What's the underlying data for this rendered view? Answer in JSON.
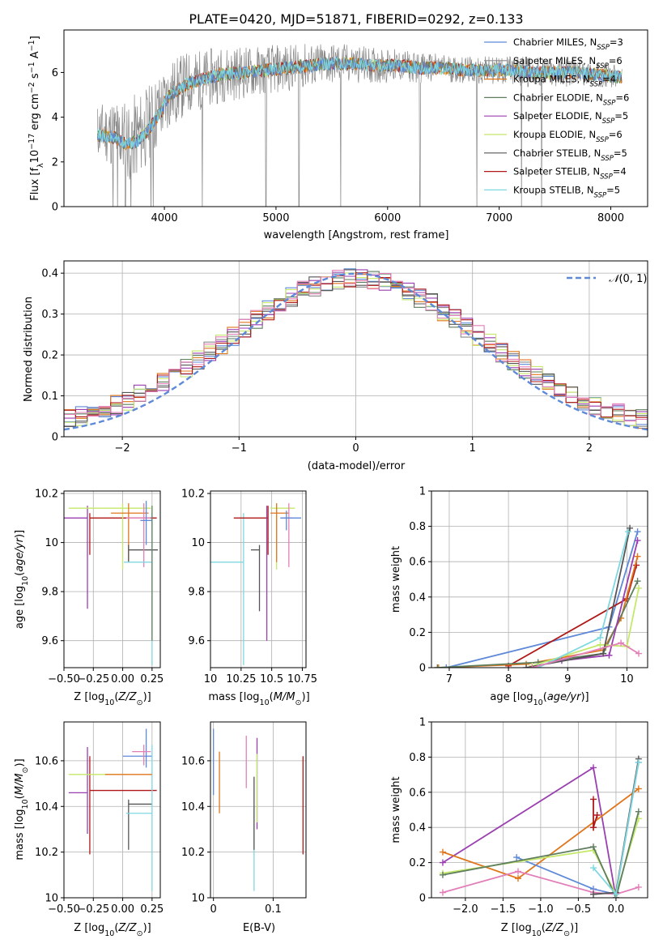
{
  "figure": {
    "title": "PLATE=0420, MJD=51871, FIBERID=0292, z=0.133",
    "colors": {
      "Chabrier MILES": "#5e89d8",
      "Salpeter MILES": "#8a8a8a",
      "Kroupa MILES": "#e0761c",
      "Chabrier ELODIE": "#5e7e5e",
      "Salpeter ELODIE": "#9a3fb0",
      "Kroupa ELODIE": "#c5e86a",
      "Chabrier STELIB": "#555555",
      "Salpeter STELIB": "#b01818",
      "Kroupa STELIB": "#7fd7e0",
      "pink": "#e37fb8",
      "data": "#888888"
    }
  },
  "chart_data": [
    {
      "id": "spectrum",
      "type": "line",
      "xlabel": "wavelength [Angstrom, rest frame]",
      "ylabel": "Flux [f_λ 10^-17 erg cm^-2 s^-1 A^-1]",
      "xlim": [
        3100,
        8330
      ],
      "ylim": [
        0,
        7.9
      ],
      "xticks": [
        4000,
        5000,
        6000,
        7000,
        8000
      ],
      "yticks": [
        0,
        2,
        4,
        6
      ],
      "grid": false,
      "legend_position": "right",
      "legend": [
        {
          "label": "Chabrier MILES, N_SSP=3",
          "color_key": "Chabrier MILES"
        },
        {
          "label": "Salpeter MILES, N_SSP=6",
          "color_key": "Salpeter MILES"
        },
        {
          "label": "Kroupa MILES, N_SSP=4",
          "color_key": "Kroupa MILES"
        },
        {
          "label": "Chabrier ELODIE, N_SSP=6",
          "color_key": "Chabrier ELODIE"
        },
        {
          "label": "Salpeter ELODIE, N_SSP=5",
          "color_key": "Salpeter ELODIE"
        },
        {
          "label": "Kroupa ELODIE, N_SSP=6",
          "color_key": "Kroupa ELODIE"
        },
        {
          "label": "Chabrier STELIB, N_SSP=5",
          "color_key": "Chabrier STELIB"
        },
        {
          "label": "Salpeter STELIB, N_SSP=4",
          "color_key": "Salpeter STELIB"
        },
        {
          "label": "Kroupa STELIB, N_SSP=5",
          "color_key": "Kroupa STELIB"
        }
      ],
      "model_continuum": {
        "x": [
          3400,
          3550,
          3650,
          3750,
          3850,
          3950,
          4050,
          4200,
          4350,
          4500,
          4700,
          4900,
          5100,
          5300,
          5500,
          5700,
          5900,
          6100,
          6300,
          6500,
          6700,
          6900,
          7100,
          7300,
          7500,
          7700,
          7900,
          8100
        ],
        "y": [
          3.4,
          3.3,
          3.0,
          3.1,
          3.6,
          4.3,
          5.0,
          5.5,
          5.7,
          5.9,
          6.0,
          6.1,
          6.2,
          6.3,
          6.4,
          6.4,
          6.3,
          6.3,
          6.2,
          6.2,
          6.1,
          6.1,
          6.1,
          6.0,
          6.0,
          6.0,
          5.9,
          5.8
        ]
      },
      "observed_noise_amplitude": {
        "x": [
          3400,
          3700,
          4000,
          4400,
          5000,
          5600,
          6200,
          6800,
          7400,
          8100
        ],
        "y": [
          1.2,
          2.0,
          1.6,
          1.3,
          1.1,
          0.9,
          0.7,
          0.6,
          0.7,
          0.5
        ]
      },
      "absorption_dips_x": [
        3540,
        3580,
        3650,
        3700,
        3880,
        3900,
        4340,
        4910,
        5205,
        5580,
        6290,
        6800,
        7200,
        7380
      ]
    },
    {
      "id": "residual-histograms",
      "type": "line",
      "xlabel": "(data-model)/error",
      "ylabel": "Normed distribution",
      "xlim": [
        -2.5,
        2.5
      ],
      "ylim": [
        0,
        0.43
      ],
      "xticks": [
        -2,
        -1,
        0,
        1,
        2
      ],
      "yticks": [
        0.0,
        0.1,
        0.2,
        0.3,
        0.4
      ],
      "grid": true,
      "legend": [
        {
          "label": "N(0,1)",
          "color_key": "Chabrier MILES"
        }
      ],
      "gaussian": {
        "mean": 0,
        "sigma": 1
      },
      "bin_width": 0.1,
      "series": [
        {
          "color_key": "Chabrier MILES",
          "seed": 1
        },
        {
          "color_key": "Salpeter MILES",
          "seed": 2
        },
        {
          "color_key": "Kroupa MILES",
          "seed": 3
        },
        {
          "color_key": "Chabrier ELODIE",
          "seed": 4
        },
        {
          "color_key": "Salpeter ELODIE",
          "seed": 5
        },
        {
          "color_key": "Kroupa ELODIE",
          "seed": 6
        },
        {
          "color_key": "Chabrier STELIB",
          "seed": 7
        },
        {
          "color_key": "Salpeter STELIB",
          "seed": 8
        },
        {
          "color_key": "pink",
          "seed": 9
        }
      ]
    },
    {
      "id": "age-vs-Z",
      "type": "scatter",
      "xlabel": "Z [log10(Z/Z_sun)]",
      "ylabel": "age [log10(age/yr)]",
      "xlim": [
        -0.5,
        0.32
      ],
      "ylim": [
        9.49,
        10.21
      ],
      "xticks": [
        -0.5,
        -0.25,
        0.0,
        0.25
      ],
      "xtick_labels": [
        "−0.50",
        "−0.25",
        "0.00",
        "0.25"
      ],
      "yticks": [
        9.6,
        9.8,
        10.0,
        10.2
      ],
      "grid": true,
      "points": [
        {
          "color_key": "Salpeter ELODIE",
          "x": -0.3,
          "xerr": [
            0.26,
            0.0
          ],
          "y": 10.1,
          "yerr": [
            0.37,
            0.05
          ]
        },
        {
          "color_key": "Salpeter STELIB",
          "x": -0.28,
          "xerr": [
            0.0,
            0.57
          ],
          "y": 10.1,
          "yerr": [
            0.15,
            0.02
          ]
        },
        {
          "color_key": "Kroupa ELODIE",
          "x": 0.0,
          "xerr": [
            0.46,
            0.24
          ],
          "y": 10.14,
          "yerr": [
            0.25,
            0.02
          ]
        },
        {
          "color_key": "Kroupa MILES",
          "x": 0.05,
          "xerr": [
            0.15,
            0.17
          ],
          "y": 10.12,
          "yerr": [
            0.2,
            0.04
          ]
        },
        {
          "color_key": "Chabrier STELIB",
          "x": 0.05,
          "xerr": [
            0.0,
            0.25
          ],
          "y": 9.97,
          "yerr": [
            0.05,
            0.02
          ]
        },
        {
          "color_key": "pink",
          "x": 0.18,
          "xerr": [
            0.15,
            0.06
          ],
          "y": 10.1,
          "yerr": [
            0.2,
            0.06
          ]
        },
        {
          "color_key": "Kroupa STELIB",
          "x": 0.25,
          "xerr": [
            0.24,
            0.0
          ],
          "y": 9.92,
          "yerr": [
            0.42,
            0.2
          ]
        },
        {
          "color_key": "Chabrier MILES",
          "x": 0.2,
          "xerr": [
            0.05,
            0.05
          ],
          "y": 10.09,
          "yerr": [
            0.1,
            0.08
          ]
        },
        {
          "color_key": "Chabrier ELODIE",
          "x": 0.25,
          "xerr": [
            0.0,
            0.0
          ],
          "y": 10.1,
          "yerr": [
            0.5,
            0.05
          ]
        }
      ]
    },
    {
      "id": "age-vs-mass",
      "type": "scatter",
      "xlabel": "mass [log10(M/M_sun)]",
      "ylabel": "",
      "xlim": [
        10.0,
        10.78
      ],
      "ylim": [
        9.49,
        10.21
      ],
      "xticks": [
        10.0,
        10.25,
        10.5,
        10.75
      ],
      "yticks": [
        9.6,
        9.8,
        10.0,
        10.2
      ],
      "grid": true,
      "points": [
        {
          "color_key": "Kroupa STELIB",
          "x": 10.27,
          "xerr": [
            0.27,
            0.0
          ],
          "y": 9.92,
          "yerr": [
            0.42,
            0.2
          ]
        },
        {
          "color_key": "Chabrier STELIB",
          "x": 10.4,
          "xerr": [
            0.07,
            0.0
          ],
          "y": 9.97,
          "yerr": [
            0.25,
            0.02
          ]
        },
        {
          "color_key": "Salpeter STELIB",
          "x": 10.47,
          "xerr": [
            0.28,
            0.0
          ],
          "y": 10.1,
          "yerr": [
            0.15,
            0.05
          ]
        },
        {
          "color_key": "Kroupa ELODIE",
          "x": 10.54,
          "xerr": [
            0.05,
            0.15
          ],
          "y": 10.14,
          "yerr": [
            0.25,
            0.02
          ]
        },
        {
          "color_key": "Kroupa MILES",
          "x": 10.54,
          "xerr": [
            0.05,
            0.1
          ],
          "y": 10.12,
          "yerr": [
            0.2,
            0.04
          ]
        },
        {
          "color_key": "pink",
          "x": 10.64,
          "xerr": [
            0.06,
            0.03
          ],
          "y": 10.1,
          "yerr": [
            0.2,
            0.06
          ]
        },
        {
          "color_key": "Chabrier MILES",
          "x": 10.62,
          "xerr": [
            0.05,
            0.12
          ],
          "y": 10.1,
          "yerr": [
            0.05,
            0.03
          ]
        },
        {
          "color_key": "Salpeter ELODIE",
          "x": 10.46,
          "xerr": [
            0.0,
            0.0
          ],
          "y": 10.1,
          "yerr": [
            0.5,
            0.05
          ]
        }
      ]
    },
    {
      "id": "mass-weight-vs-age",
      "type": "line",
      "xlabel": "age [log10(age/yr)]",
      "ylabel": "mass weight",
      "xlim": [
        6.7,
        10.35
      ],
      "ylim": [
        0,
        1.0
      ],
      "xticks": [
        7,
        8,
        9,
        10
      ],
      "yticks": [
        0.0,
        0.2,
        0.4,
        0.6,
        0.8,
        1.0
      ],
      "grid": true,
      "series": [
        {
          "color_key": "Chabrier MILES",
          "x": [
            6.95,
            9.7,
            10.18
          ],
          "y": [
            0.0,
            0.23,
            0.77
          ]
        },
        {
          "color_key": "Salpeter STELIB",
          "x": [
            8.0,
            10.0,
            10.16
          ],
          "y": [
            0.01,
            0.39,
            0.58
          ]
        },
        {
          "color_key": "Kroupa MILES",
          "x": [
            6.82,
            8.3,
            9.6,
            9.9,
            10.18
          ],
          "y": [
            0.0,
            0.02,
            0.1,
            0.28,
            0.63
          ]
        },
        {
          "color_key": "Chabrier ELODIE",
          "x": [
            6.8,
            8.5,
            9.6,
            10.18
          ],
          "y": [
            0.0,
            0.03,
            0.08,
            0.49
          ]
        },
        {
          "color_key": "Salpeter ELODIE",
          "x": [
            8.9,
            9.7,
            10.18
          ],
          "y": [
            0.04,
            0.07,
            0.72
          ]
        },
        {
          "color_key": "Kroupa ELODIE",
          "x": [
            8.4,
            9.55,
            10.0,
            10.2
          ],
          "y": [
            0.01,
            0.13,
            0.12,
            0.45
          ]
        },
        {
          "color_key": "Chabrier STELIB",
          "x": [
            8.3,
            9.6,
            10.05
          ],
          "y": [
            0.0,
            0.08,
            0.79
          ]
        },
        {
          "color_key": "Kroupa STELIB",
          "x": [
            8.5,
            9.55,
            10.02
          ],
          "y": [
            0.0,
            0.17,
            0.77
          ]
        },
        {
          "color_key": "pink",
          "x": [
            8.4,
            9.9,
            10.2
          ],
          "y": [
            0.0,
            0.14,
            0.08
          ]
        }
      ]
    },
    {
      "id": "mass-vs-Z",
      "type": "scatter",
      "xlabel": "Z [log10(Z/Z_sun)]",
      "ylabel": "mass [log10(M/M_sun)]",
      "xlim": [
        -0.5,
        0.32
      ],
      "ylim": [
        10.0,
        10.77
      ],
      "xticks": [
        -0.5,
        -0.25,
        0.0,
        0.25
      ],
      "xtick_labels": [
        "−0.50",
        "−0.25",
        "0.00",
        "0.25"
      ],
      "yticks": [
        10.0,
        10.2,
        10.4,
        10.6
      ],
      "grid": true,
      "points": [
        {
          "color_key": "Salpeter ELODIE",
          "x": -0.3,
          "xerr": [
            0.16,
            0.0
          ],
          "y": 10.46,
          "yerr": [
            0.18,
            0.2
          ]
        },
        {
          "color_key": "Salpeter STELIB",
          "x": -0.28,
          "xerr": [
            0.0,
            0.57
          ],
          "y": 10.47,
          "yerr": [
            0.28,
            0.15
          ]
        },
        {
          "color_key": "Kroupa ELODIE",
          "x": -0.0,
          "xerr": [
            0.46,
            0.04
          ],
          "y": 10.54,
          "yerr": [
            0.0,
            0.0
          ]
        },
        {
          "color_key": "Chabrier STELIB",
          "x": 0.05,
          "xerr": [
            0.0,
            0.2
          ],
          "y": 10.41,
          "yerr": [
            0.2,
            0.02
          ]
        },
        {
          "color_key": "Chabrier MILES",
          "x": 0.2,
          "xerr": [
            0.2,
            0.05
          ],
          "y": 10.62,
          "yerr": [
            0.05,
            0.12
          ]
        },
        {
          "color_key": "pink",
          "x": 0.18,
          "xerr": [
            0.1,
            0.06
          ],
          "y": 10.64,
          "yerr": [
            0.06,
            0.03
          ]
        },
        {
          "color_key": "Kroupa STELIB",
          "x": 0.25,
          "xerr": [
            0.22,
            0.0
          ],
          "y": 10.37,
          "yerr": [
            0.34,
            0.3
          ]
        },
        {
          "color_key": "Kroupa MILES",
          "x": 0.05,
          "xerr": [
            0.2,
            0.2
          ],
          "y": 10.54,
          "yerr": [
            0.0,
            0.0
          ]
        }
      ]
    },
    {
      "id": "mass-vs-EBV",
      "type": "scatter",
      "xlabel": "E(B-V)",
      "ylabel": "",
      "xlim": [
        -0.005,
        0.155
      ],
      "ylim": [
        10.0,
        10.77
      ],
      "xticks": [
        0.0,
        0.1
      ],
      "yticks": [
        10.0,
        10.2,
        10.4,
        10.6
      ],
      "grid": true,
      "points": [
        {
          "color_key": "Chabrier MILES",
          "x": 0.0,
          "y": 10.62,
          "yerr": [
            0.17,
            0.12
          ]
        },
        {
          "color_key": "Kroupa MILES",
          "x": 0.01,
          "y": 10.54,
          "yerr": [
            0.17,
            0.1
          ]
        },
        {
          "color_key": "pink",
          "x": 0.055,
          "y": 10.6,
          "yerr": [
            0.12,
            0.11
          ]
        },
        {
          "color_key": "Kroupa STELIB",
          "x": 0.068,
          "y": 10.2,
          "yerr": [
            0.17,
            0.2
          ]
        },
        {
          "color_key": "Chabrier STELIB",
          "x": 0.068,
          "y": 10.41,
          "yerr": [
            0.2,
            0.12
          ]
        },
        {
          "color_key": "Salpeter ELODIE",
          "x": 0.073,
          "y": 10.5,
          "yerr": [
            0.2,
            0.2
          ]
        },
        {
          "color_key": "Kroupa ELODIE",
          "x": 0.073,
          "y": 10.5,
          "yerr": [
            0.17,
            0.13
          ]
        },
        {
          "color_key": "Salpeter STELIB",
          "x": 0.15,
          "y": 10.4,
          "yerr": [
            0.21,
            0.22
          ]
        }
      ]
    },
    {
      "id": "mass-weight-vs-Z",
      "type": "line",
      "xlabel": "Z [log10(Z/Z_sun)]",
      "ylabel": "mass weight",
      "xlim": [
        -2.45,
        0.42
      ],
      "ylim": [
        0,
        1.0
      ],
      "xticks": [
        -2.0,
        -1.5,
        -1.0,
        -0.5,
        0.0
      ],
      "xtick_labels": [
        "−2.0",
        "−1.5",
        "−1.0",
        "−0.5",
        "0.0"
      ],
      "yticks": [
        0.0,
        0.2,
        0.4,
        0.6,
        0.8,
        1.0
      ],
      "grid": true,
      "series": [
        {
          "color_key": "Salpeter ELODIE",
          "x": [
            -2.3,
            -0.3,
            0.0
          ],
          "y": [
            0.2,
            0.74,
            0.0
          ]
        },
        {
          "color_key": "Kroupa MILES",
          "x": [
            -2.3,
            -1.3,
            0.3
          ],
          "y": [
            0.26,
            0.11,
            0.62
          ]
        },
        {
          "color_key": "Chabrier MILES",
          "x": [
            -1.32,
            -0.3,
            0.0,
            0.3
          ],
          "y": [
            0.23,
            0.05,
            0.02,
            0.77
          ]
        },
        {
          "color_key": "Kroupa ELODIE",
          "x": [
            -2.3,
            -0.3,
            0.0,
            0.3
          ],
          "y": [
            0.14,
            0.27,
            0.02,
            0.45
          ]
        },
        {
          "color_key": "Chabrier ELODIE",
          "x": [
            -2.3,
            -0.3,
            0.0,
            0.3
          ],
          "y": [
            0.13,
            0.29,
            0.0,
            0.49
          ]
        },
        {
          "color_key": "pink",
          "x": [
            -2.3,
            -1.3,
            -0.3,
            0.0,
            0.3
          ],
          "y": [
            0.03,
            0.15,
            0.03,
            0.02,
            0.06
          ]
        },
        {
          "color_key": "Salpeter STELIB",
          "x": [
            -0.3,
            -0.3,
            -0.25,
            -0.3
          ],
          "y": [
            0.56,
            0.4,
            0.47,
            0.4
          ]
        },
        {
          "color_key": "Chabrier STELIB",
          "x": [
            -0.3,
            0.0,
            0.3
          ],
          "y": [
            0.02,
            0.03,
            0.79
          ]
        },
        {
          "color_key": "Kroupa STELIB",
          "x": [
            -0.3,
            0.0,
            0.3
          ],
          "y": [
            0.17,
            0.02,
            0.77
          ]
        }
      ]
    }
  ]
}
